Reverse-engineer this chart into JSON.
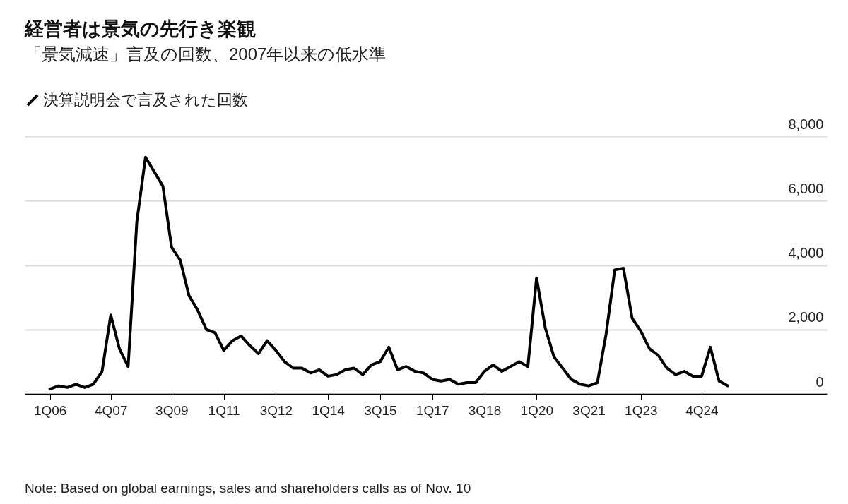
{
  "chart_data": {
    "type": "line",
    "title": "経営者は景気の先行き楽観",
    "subtitle": "「景気減速」言及の回数、2007年以来の低水準",
    "categories": [
      "1Q06",
      null,
      null,
      null,
      null,
      null,
      null,
      "4Q07",
      null,
      null,
      null,
      null,
      null,
      null,
      "3Q09",
      null,
      null,
      null,
      null,
      null,
      "1Q11",
      null,
      null,
      null,
      null,
      null,
      "3Q12",
      null,
      null,
      null,
      null,
      null,
      "1Q14",
      null,
      null,
      null,
      null,
      null,
      "3Q15",
      null,
      null,
      null,
      null,
      null,
      "1Q17",
      null,
      null,
      null,
      null,
      null,
      "3Q18",
      null,
      null,
      null,
      null,
      null,
      "1Q20",
      null,
      null,
      null,
      null,
      null,
      "3Q21",
      null,
      null,
      null,
      null,
      null,
      "1Q23",
      null,
      null,
      null,
      null,
      null,
      null,
      "4Q24",
      null,
      null,
      null
    ],
    "series": [
      {
        "name": "決算説明会で言及された回数",
        "color": "#000000",
        "values": [
          150,
          250,
          200,
          300,
          200,
          300,
          700,
          2450,
          1400,
          850,
          5350,
          7350,
          6900,
          6450,
          4550,
          4150,
          3050,
          2600,
          2000,
          1900,
          1350,
          1650,
          1800,
          1500,
          1250,
          1650,
          1350,
          1000,
          800,
          800,
          650,
          750,
          550,
          600,
          750,
          800,
          600,
          900,
          1000,
          1450,
          750,
          850,
          700,
          650,
          450,
          400,
          450,
          300,
          350,
          350,
          700,
          900,
          700,
          850,
          1000,
          850,
          3600,
          2050,
          1150,
          800,
          450,
          300,
          250,
          350,
          1850,
          3850,
          3900,
          2350,
          1950,
          1400,
          1200,
          800,
          600,
          700,
          550,
          550,
          1450,
          400,
          250
        ]
      }
    ],
    "ylim": [
      0,
      8000
    ],
    "yticks": [
      {
        "value": 0,
        "label": "0"
      },
      {
        "value": 2000,
        "label": "2,000"
      },
      {
        "value": 4000,
        "label": "4,000"
      },
      {
        "value": 6000,
        "label": "6,000"
      },
      {
        "value": 8000,
        "label": "8,000"
      }
    ],
    "grid": "y",
    "legend": "top left",
    "line_style": "solid",
    "annotations": [
      "Note: Based on global earnings, sales and shareholders calls as of Nov. 10"
    ]
  }
}
